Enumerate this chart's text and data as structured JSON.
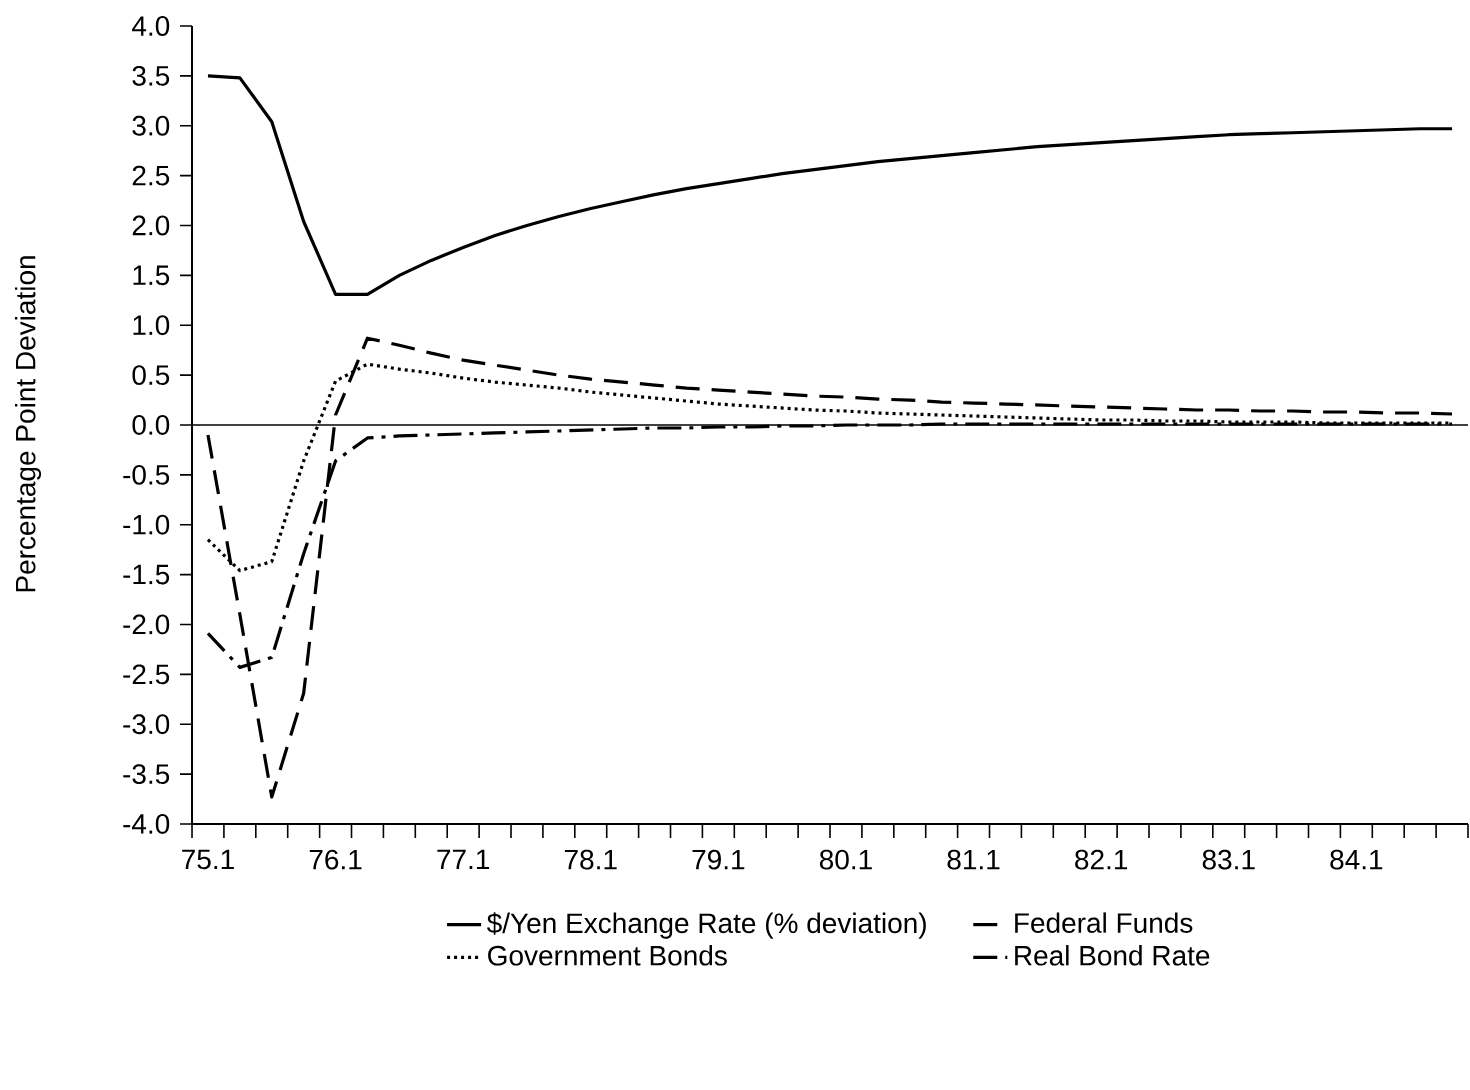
{
  "chart_data": {
    "type": "line",
    "ylabel": "Percentage Point Deviation",
    "categories": [
      "75.1",
      null,
      null,
      null,
      "76.1",
      null,
      null,
      null,
      "77.1",
      null,
      null,
      null,
      "78.1",
      null,
      null,
      null,
      "79.1",
      null,
      null,
      null,
      "80.1",
      null,
      null,
      null,
      "81.1",
      null,
      null,
      null,
      "82.1",
      null,
      null,
      null,
      "83.1",
      null,
      null,
      null,
      "84.1",
      null,
      null,
      null
    ],
    "ylim": [
      -4,
      4
    ],
    "yticks": [
      {
        "value": -4,
        "label": "-4.0"
      },
      {
        "value": -3.5,
        "label": "-3.5"
      },
      {
        "value": -3,
        "label": "-3.0"
      },
      {
        "value": -2.5,
        "label": "-2.5"
      },
      {
        "value": -2,
        "label": "-2.0"
      },
      {
        "value": -1.5,
        "label": "-1.5"
      },
      {
        "value": -1,
        "label": "-1.0"
      },
      {
        "value": -0.5,
        "label": "-0.5"
      },
      {
        "value": 0,
        "label": "0.0"
      },
      {
        "value": 0.5,
        "label": "0.5"
      },
      {
        "value": 1,
        "label": "1.0"
      },
      {
        "value": 1.5,
        "label": "1.5"
      },
      {
        "value": 2,
        "label": "2.0"
      },
      {
        "value": 2.5,
        "label": "2.5"
      },
      {
        "value": 3,
        "label": "3.0"
      },
      {
        "value": 3.5,
        "label": "3.5"
      },
      {
        "value": 4,
        "label": "4.0"
      }
    ],
    "ref_lines": [
      {
        "axis": "y",
        "value": 0,
        "color": "#000000"
      }
    ],
    "legend": "bottom",
    "series": [
      {
        "name": "$/Yen Exchange Rate (% deviation)",
        "color": "#000000",
        "line_style": "solid",
        "values": [
          3.5,
          3.48,
          3.04,
          2.04,
          1.31,
          1.31,
          1.5,
          1.65,
          1.78,
          1.9,
          2.0,
          2.09,
          2.17,
          2.24,
          2.31,
          2.37,
          2.42,
          2.47,
          2.52,
          2.56,
          2.6,
          2.64,
          2.67,
          2.7,
          2.73,
          2.76,
          2.79,
          2.81,
          2.83,
          2.85,
          2.87,
          2.89,
          2.91,
          2.92,
          2.93,
          2.94,
          2.95,
          2.96,
          2.97,
          2.97
        ]
      },
      {
        "name": "Federal Funds",
        "color": "#000000",
        "line_style": "dashed",
        "values": [
          -0.1,
          -1.9,
          -3.73,
          -2.69,
          0.1,
          0.87,
          0.8,
          0.72,
          0.65,
          0.6,
          0.55,
          0.5,
          0.46,
          0.43,
          0.4,
          0.37,
          0.35,
          0.33,
          0.31,
          0.29,
          0.28,
          0.26,
          0.25,
          0.23,
          0.22,
          0.21,
          0.2,
          0.19,
          0.18,
          0.17,
          0.16,
          0.15,
          0.15,
          0.14,
          0.14,
          0.13,
          0.13,
          0.12,
          0.12,
          0.11
        ]
      },
      {
        "name": "Government Bonds",
        "color": "#000000",
        "line_style": "dotted",
        "values": [
          -1.15,
          -1.46,
          -1.37,
          -0.36,
          0.44,
          0.61,
          0.56,
          0.52,
          0.47,
          0.43,
          0.4,
          0.37,
          0.33,
          0.3,
          0.27,
          0.24,
          0.21,
          0.19,
          0.17,
          0.15,
          0.14,
          0.12,
          0.11,
          0.1,
          0.09,
          0.08,
          0.07,
          0.06,
          0.05,
          0.05,
          0.04,
          0.04,
          0.03,
          0.03,
          0.03,
          0.02,
          0.02,
          0.02,
          0.02,
          0.02
        ]
      },
      {
        "name": "Real Bond Rate",
        "color": "#000000",
        "line_style": "dashdot",
        "values": [
          -2.09,
          -2.43,
          -2.33,
          -1.29,
          -0.36,
          -0.13,
          -0.11,
          -0.1,
          -0.09,
          -0.08,
          -0.07,
          -0.06,
          -0.05,
          -0.04,
          -0.03,
          -0.03,
          -0.02,
          -0.02,
          -0.01,
          -0.01,
          0,
          0,
          0,
          0.01,
          0.01,
          0.01,
          0.01,
          0.01,
          0.01,
          0.01,
          0.01,
          0.01,
          0.01,
          0.01,
          0.01,
          0.01,
          0.01,
          0.01,
          0.01,
          0.01
        ]
      }
    ]
  }
}
